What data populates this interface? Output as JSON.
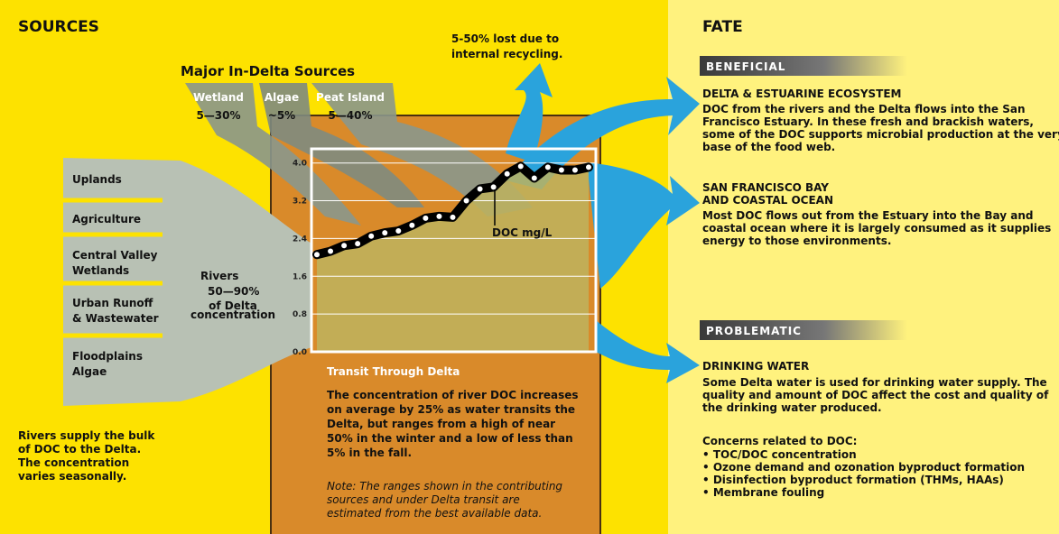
{
  "sources": {
    "title": "SOURCES",
    "in_delta_title": "Major In-Delta Sources",
    "in_delta": [
      {
        "name": "Wetland",
        "range": "5—30%"
      },
      {
        "name": "Algae",
        "range": "~5%"
      },
      {
        "name": "Peat Island",
        "range": "5—40%"
      }
    ],
    "river_sources": [
      [
        "Uplands"
      ],
      [
        "Agriculture"
      ],
      [
        "Central Valley",
        "Wetlands"
      ],
      [
        "Urban Runoff",
        "& Wastewater"
      ],
      [
        "Floodplains",
        "Algae"
      ]
    ],
    "rivers": {
      "label": "Rivers",
      "range": "50—90%",
      "note": [
        "of Delta",
        "concentration"
      ]
    },
    "summary": [
      "Rivers supply the bulk",
      "of DOC to the Delta.",
      "The concentration",
      "varies seasonally."
    ]
  },
  "recycling": [
    "5-50% lost due to",
    "internal recycling."
  ],
  "transit": {
    "title": "Transit Through Delta",
    "body": [
      "The concentration of river DOC increases",
      "on average by 25% as water transits the",
      "Delta, but ranges from a high of near",
      "50% in the winter and a low of less than",
      "5% in the fall."
    ],
    "note": [
      "Note: The ranges shown in the contributing",
      "sources and under Delta transit are",
      "estimated from the best available data."
    ]
  },
  "chart_data": {
    "type": "line",
    "y_label": "DOC mg/L",
    "values": [
      2.06,
      2.13,
      2.25,
      2.29,
      2.45,
      2.52,
      2.56,
      2.68,
      2.83,
      2.87,
      2.85,
      3.2,
      3.45,
      3.49,
      3.77,
      3.93,
      3.68,
      3.91,
      3.85,
      3.85,
      3.91
    ],
    "ylim": [
      0,
      4.3
    ],
    "yticks": [
      {
        "value": 0,
        "label": "0.0"
      },
      0.8,
      1.6,
      2.4,
      3.2,
      {
        "value": 4,
        "label": "4.0"
      }
    ],
    "grid": true,
    "line_color": "#000000",
    "marker_color": "#ffffff"
  },
  "fate": {
    "title": "FATE",
    "beneficial": {
      "label": "BENEFICIAL",
      "items": [
        {
          "title": [
            "DELTA & ESTUARINE ECOSYSTEM"
          ],
          "body": [
            "DOC from the rivers and the Delta flows into the San",
            "Francisco Estuary.  In these fresh and brackish waters,",
            "some of the DOC supports microbial production at the very",
            "base of the food web."
          ]
        },
        {
          "title": [
            "SAN FRANCISCO BAY",
            "AND COASTAL OCEAN"
          ],
          "body": [
            "Most DOC flows out from the Estuary into the Bay and",
            "coastal ocean where it is largely consumed as it supplies",
            "energy to those environments."
          ]
        }
      ]
    },
    "problematic": {
      "label": "PROBLEMATIC",
      "items": [
        {
          "title": [
            "DRINKING WATER"
          ],
          "body": [
            "Some Delta water is used for drinking water supply. The",
            "quality and amount of DOC affect the cost and quality of",
            "the drinking water produced."
          ]
        }
      ],
      "concerns_title": "Concerns related to DOC:",
      "concerns": [
        "• TOC/DOC concentration",
        "• Ozone demand and ozonation byproduct formation",
        "• Disinfection byproduct formation (THMs, HAAs)",
        "• Membrane fouling"
      ]
    }
  }
}
